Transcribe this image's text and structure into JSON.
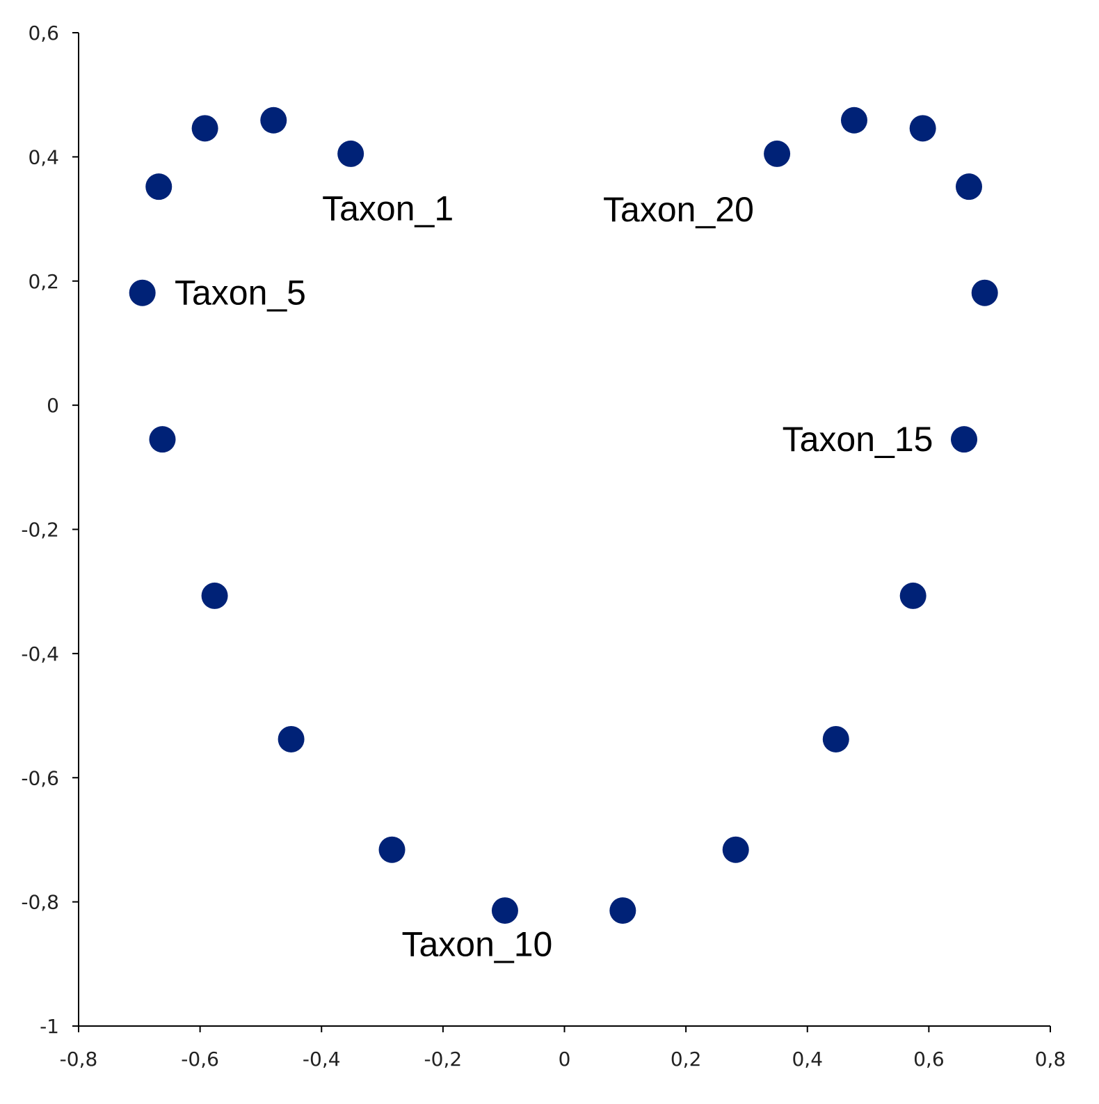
{
  "chart_data": {
    "type": "scatter",
    "title": "",
    "xlabel": "",
    "ylabel": "",
    "xlim": [
      -0.8,
      0.8
    ],
    "ylim": [
      -1,
      0.6
    ],
    "x_ticks": [
      -0.8,
      -0.6,
      -0.4,
      -0.2,
      0,
      0.2,
      0.4,
      0.6,
      0.8
    ],
    "x_tick_labels": [
      "-0,8",
      "-0,6",
      "-0,4",
      "-0,2",
      "0",
      "0,2",
      "0,4",
      "0,6",
      "0,8"
    ],
    "y_ticks": [
      0.6,
      0.4,
      0.2,
      0,
      -0.2,
      -0.4,
      -0.6,
      -0.8,
      -1
    ],
    "y_tick_labels": [
      "0,6",
      "0,4",
      "0,2",
      "0",
      "-0,2",
      "-0,4",
      "-0,6",
      "-0,8",
      "-1"
    ],
    "grid": false,
    "marker_color": "#002277",
    "points": [
      {
        "x": -0.352,
        "y": 0.405
      },
      {
        "x": -0.479,
        "y": 0.459
      },
      {
        "x": -0.592,
        "y": 0.446
      },
      {
        "x": -0.668,
        "y": 0.352
      },
      {
        "x": -0.695,
        "y": 0.181
      },
      {
        "x": -0.662,
        "y": -0.055
      },
      {
        "x": -0.576,
        "y": -0.307
      },
      {
        "x": -0.45,
        "y": -0.538
      },
      {
        "x": -0.284,
        "y": -0.716
      },
      {
        "x": -0.098,
        "y": -0.814
      },
      {
        "x": 0.096,
        "y": -0.814
      },
      {
        "x": 0.282,
        "y": -0.716
      },
      {
        "x": 0.447,
        "y": -0.538
      },
      {
        "x": 0.574,
        "y": -0.307
      },
      {
        "x": 0.658,
        "y": -0.055
      },
      {
        "x": 0.692,
        "y": 0.181
      },
      {
        "x": 0.666,
        "y": 0.352
      },
      {
        "x": 0.59,
        "y": 0.446
      },
      {
        "x": 0.477,
        "y": 0.459
      },
      {
        "x": 0.35,
        "y": 0.405
      }
    ],
    "annotations": [
      {
        "text": "Taxon_1",
        "x": -0.399,
        "y": 0.317,
        "anchor": "start"
      },
      {
        "text": "Taxon_5",
        "x": -0.642,
        "y": 0.181,
        "anchor": "start"
      },
      {
        "text": "Taxon_10",
        "x": -0.268,
        "y": -0.868,
        "anchor": "start"
      },
      {
        "text": "Taxon_15",
        "x": 0.607,
        "y": -0.055,
        "anchor": "end"
      },
      {
        "text": "Taxon_20",
        "x": 0.312,
        "y": 0.315,
        "anchor": "end"
      }
    ]
  }
}
